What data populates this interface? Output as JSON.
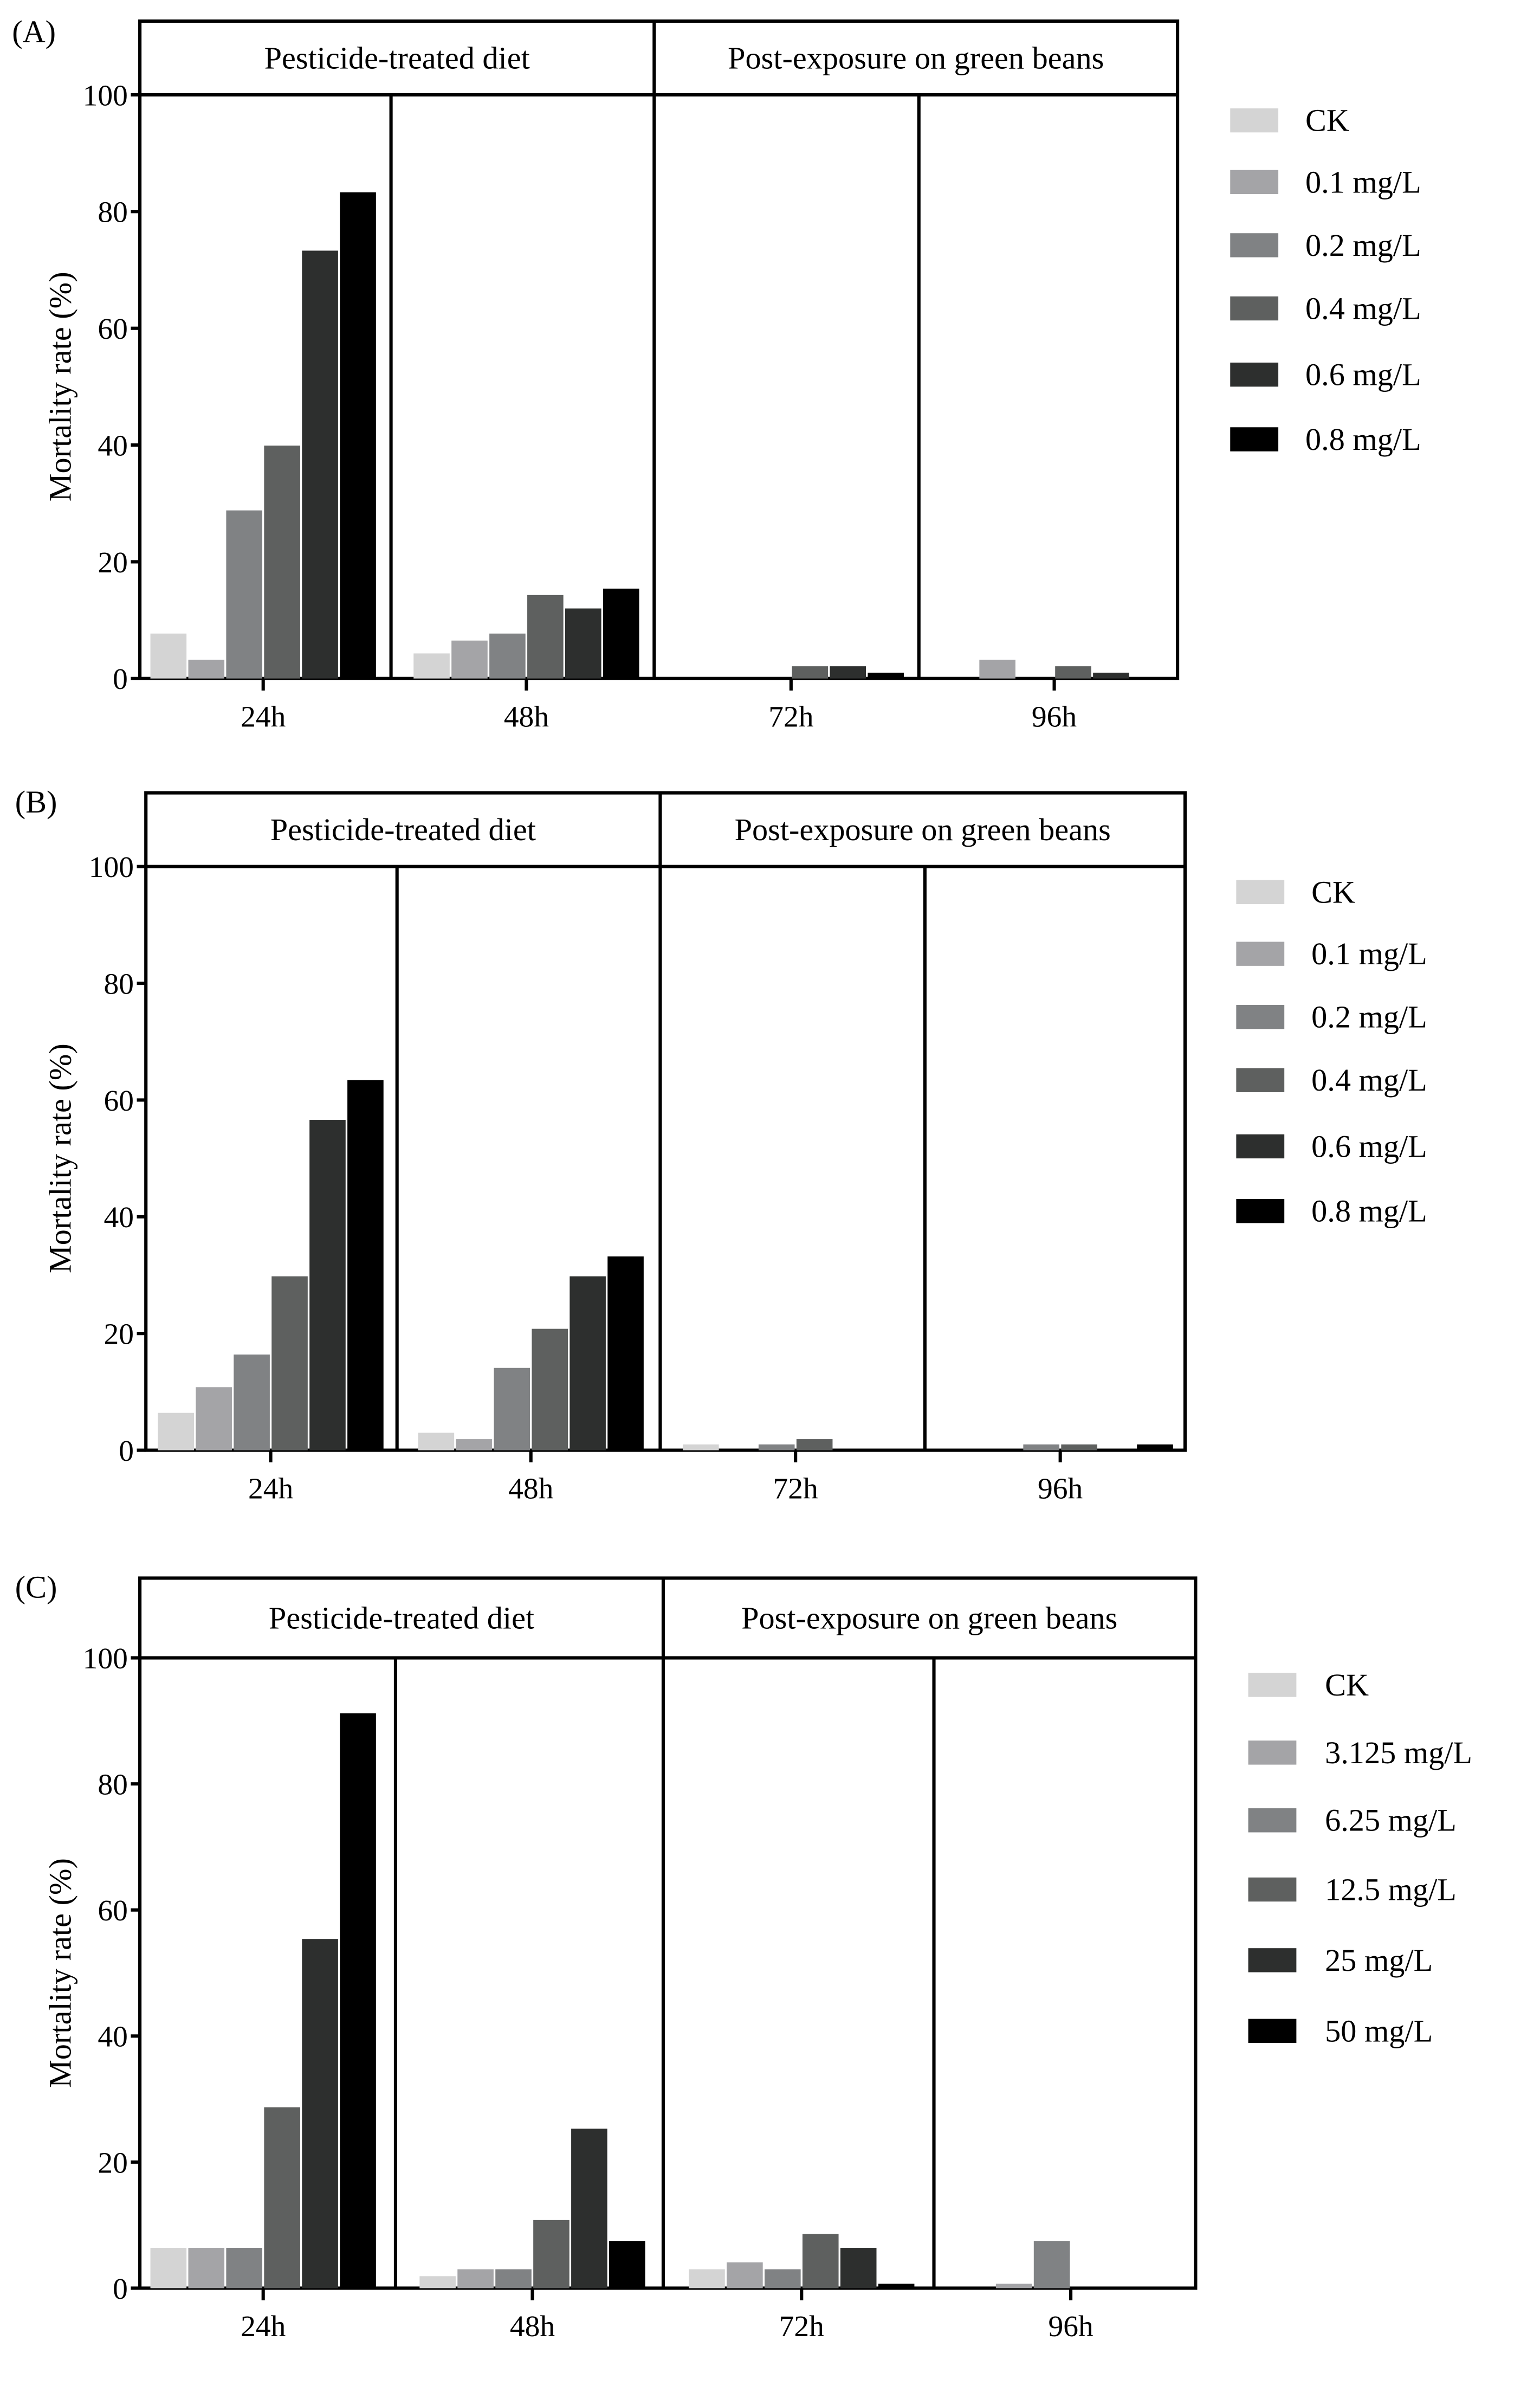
{
  "chart_data": [
    {
      "type": "bar",
      "panel_label": "(A)",
      "ylabel": "Mortality rate (%)",
      "ylim": [
        0,
        100
      ],
      "yticks": [
        "0",
        "20",
        "40",
        "60",
        "80",
        "100"
      ],
      "headers": [
        "Pesticide-treated diet",
        "Post-exposure on green beans"
      ],
      "categories": [
        "24h",
        "48h",
        "72h",
        "96h"
      ],
      "legend_position": "right",
      "series": [
        {
          "name": "CK",
          "color": "#d4d4d4",
          "values": [
            7.7,
            4.3,
            0,
            0
          ]
        },
        {
          "name": "0.1 mg/L",
          "color": "#a4a4a7",
          "values": [
            3.2,
            6.5,
            0,
            3.2
          ]
        },
        {
          "name": "0.2 mg/L",
          "color": "#808284",
          "values": [
            28.8,
            7.7,
            0,
            0
          ]
        },
        {
          "name": "0.4 mg/L",
          "color": "#5e605f",
          "values": [
            39.9,
            14.3,
            2.1,
            2.1
          ]
        },
        {
          "name": "0.6 mg/L",
          "color": "#2d2f2e",
          "values": [
            73.3,
            12.0,
            2.1,
            1.0
          ]
        },
        {
          "name": "0.8 mg/L",
          "color": "#000000",
          "values": [
            83.3,
            15.4,
            1.0,
            0
          ]
        }
      ]
    },
    {
      "type": "bar",
      "panel_label": "(B)",
      "ylabel": "Mortality rate (%)",
      "ylim": [
        0,
        100
      ],
      "yticks": [
        "0",
        "20",
        "40",
        "60",
        "80",
        "100"
      ],
      "headers": [
        "Pesticide-treated diet",
        "Post-exposure on green beans"
      ],
      "categories": [
        "24h",
        "48h",
        "72h",
        "96h"
      ],
      "legend_position": "right",
      "series": [
        {
          "name": "CK",
          "color": "#d4d4d4",
          "values": [
            6.4,
            3.0,
            1.0,
            0
          ]
        },
        {
          "name": "0.1 mg/L",
          "color": "#a4a4a7",
          "values": [
            10.8,
            1.9,
            0,
            0
          ]
        },
        {
          "name": "0.2 mg/L",
          "color": "#808284",
          "values": [
            16.4,
            14.1,
            1.0,
            1.0
          ]
        },
        {
          "name": "0.4 mg/L",
          "color": "#5e605f",
          "values": [
            29.8,
            20.8,
            1.9,
            1.0
          ]
        },
        {
          "name": "0.6 mg/L",
          "color": "#2d2f2e",
          "values": [
            56.6,
            29.8,
            0,
            0
          ]
        },
        {
          "name": "0.8 mg/L",
          "color": "#000000",
          "values": [
            63.4,
            33.2,
            0,
            1.0
          ]
        }
      ]
    },
    {
      "type": "bar",
      "panel_label": "(C)",
      "ylabel": "Mortality rate (%)",
      "ylim": [
        0,
        100
      ],
      "yticks": [
        "0",
        "20",
        "40",
        "60",
        "80",
        "100"
      ],
      "headers": [
        "Pesticide-treated diet",
        "Post-exposure on green beans"
      ],
      "categories": [
        "24h",
        "48h",
        "72h",
        "96h"
      ],
      "legend_position": "right",
      "series": [
        {
          "name": "CK",
          "color": "#d4d4d4",
          "values": [
            6.4,
            1.9,
            3.0,
            0
          ]
        },
        {
          "name": "3.125 mg/L",
          "color": "#a4a4a7",
          "values": [
            6.4,
            3.0,
            4.1,
            0.7
          ]
        },
        {
          "name": "6.25 mg/L",
          "color": "#808284",
          "values": [
            6.4,
            3.0,
            3.0,
            7.5
          ]
        },
        {
          "name": "12.5 mg/L",
          "color": "#5e605f",
          "values": [
            28.7,
            10.8,
            8.6,
            0
          ]
        },
        {
          "name": "25 mg/L",
          "color": "#2d2f2e",
          "values": [
            55.4,
            25.3,
            6.4,
            0
          ]
        },
        {
          "name": "50 mg/L",
          "color": "#000000",
          "values": [
            91.2,
            7.5,
            0.7,
            0
          ]
        }
      ]
    }
  ]
}
